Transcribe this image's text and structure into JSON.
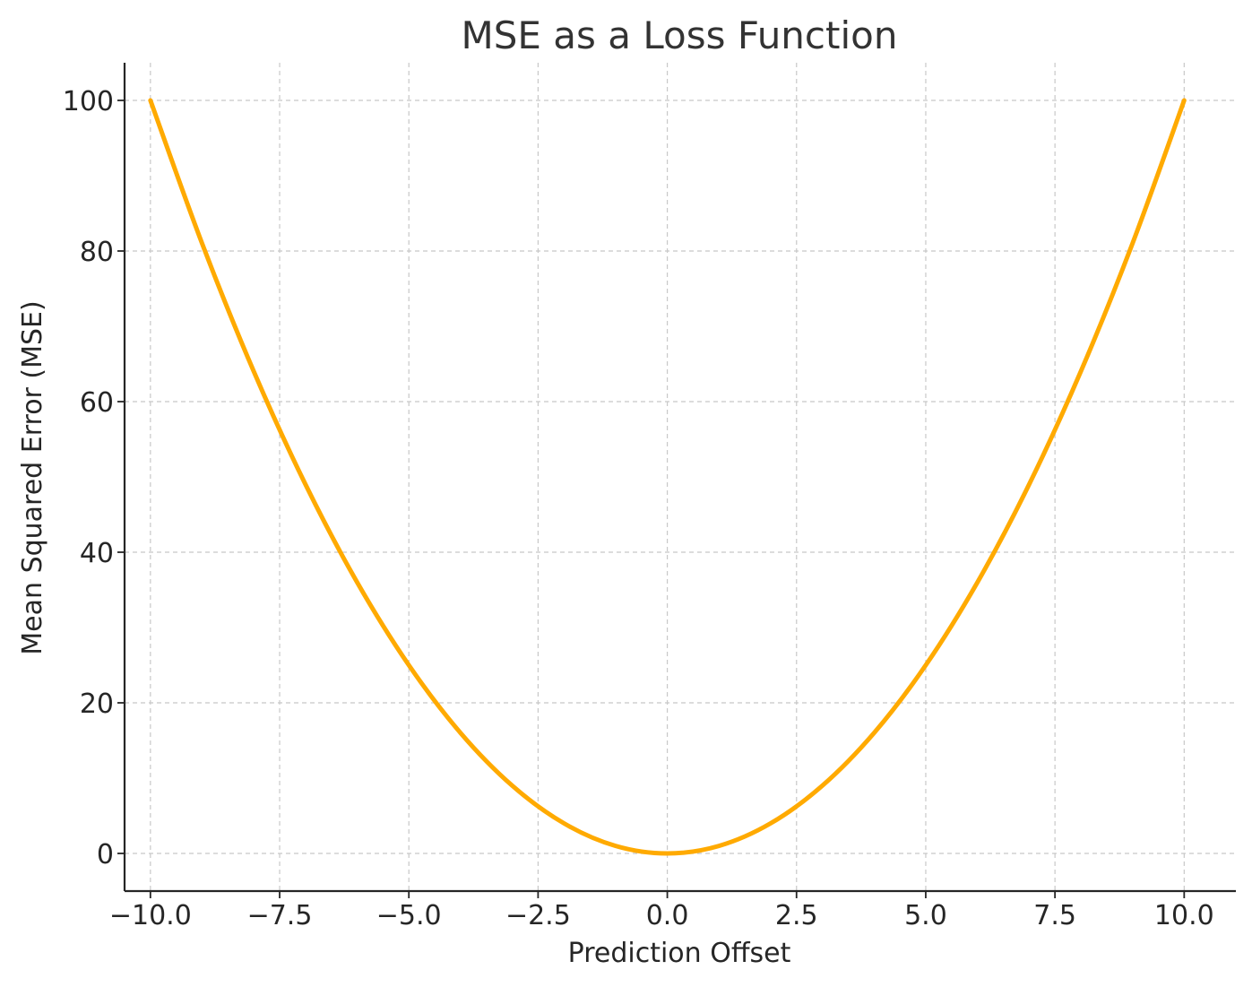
{
  "chart_data": {
    "type": "line",
    "title": "MSE as a Loss Function",
    "xlabel": "Prediction Offset",
    "ylabel": "Mean Squared Error (MSE)",
    "xlim": [
      -10.5,
      11.0
    ],
    "ylim": [
      -5,
      105
    ],
    "x_ticks": [
      -10.0,
      -7.5,
      -5.0,
      -2.5,
      0.0,
      2.5,
      5.0,
      7.5,
      10.0
    ],
    "x_tick_labels": [
      "−10.0",
      "−7.5",
      "−5.0",
      "−2.5",
      "0.0",
      "2.5",
      "5.0",
      "7.5",
      "10.0"
    ],
    "y_ticks": [
      0,
      20,
      40,
      60,
      80,
      100
    ],
    "y_tick_labels": [
      "0",
      "20",
      "40",
      "60",
      "80",
      "100"
    ],
    "grid": true,
    "legend": "none",
    "series": [
      {
        "color": "#FFAA00",
        "x": [
          -10,
          -9,
          -8,
          -7,
          -6,
          -5,
          -4,
          -3,
          -2,
          -1,
          0,
          1,
          2,
          3,
          4,
          5,
          6,
          7,
          8,
          9,
          10
        ],
        "y": [
          100,
          81,
          64,
          49,
          36,
          25,
          16,
          9,
          4,
          1,
          0,
          1,
          4,
          9,
          16,
          25,
          36,
          49,
          64,
          81,
          100
        ]
      }
    ]
  }
}
